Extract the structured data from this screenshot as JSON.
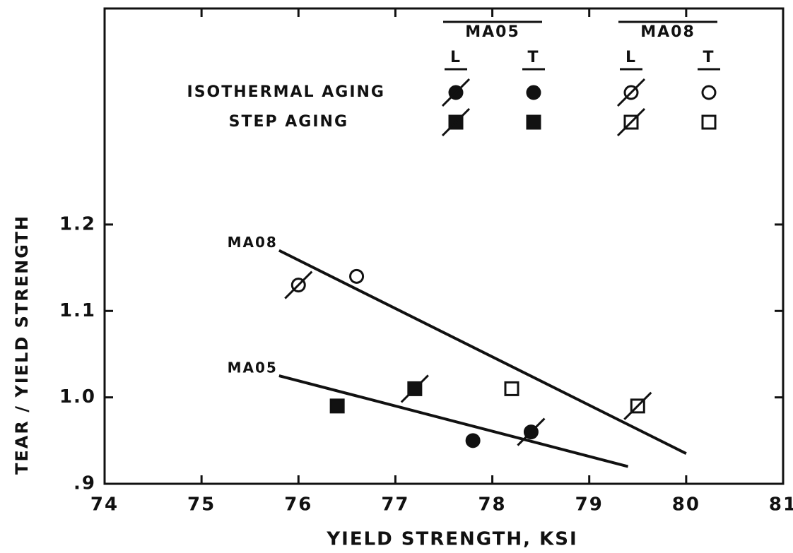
{
  "chart_data": {
    "type": "scatter",
    "xlabel": "YIELD STRENGTH, KSI",
    "ylabel": "TEAR / YIELD STRENGTH",
    "xlim": [
      74,
      81
    ],
    "xticks": [
      74,
      75,
      76,
      77,
      78,
      79,
      80,
      81
    ],
    "ylim": [
      0.9,
      1.45
    ],
    "yticks": [
      {
        "value": 0.9,
        "label": ".9"
      },
      {
        "value": 1.0,
        "label": "1.0"
      },
      1.1,
      1.2
    ],
    "color": "#111111",
    "legend": {
      "groups": [
        "MA05",
        "MA08"
      ],
      "directions": [
        "L",
        "T"
      ],
      "rows": [
        "ISOTHERMAL AGING",
        "STEP AGING"
      ]
    },
    "series": [
      {
        "marker": "circle",
        "filled": true,
        "slash": true,
        "x": [
          78.4
        ],
        "values": [
          0.96
        ]
      },
      {
        "marker": "circle",
        "filled": true,
        "slash": false,
        "x": [
          77.8
        ],
        "values": [
          0.95
        ]
      },
      {
        "marker": "circle",
        "filled": false,
        "slash": true,
        "x": [
          76.0
        ],
        "values": [
          1.13
        ]
      },
      {
        "marker": "circle",
        "filled": false,
        "slash": false,
        "x": [
          76.6
        ],
        "values": [
          1.14
        ]
      },
      {
        "marker": "square",
        "filled": true,
        "slash": true,
        "x": [
          77.2
        ],
        "values": [
          1.01
        ]
      },
      {
        "marker": "square",
        "filled": true,
        "slash": false,
        "x": [
          76.4
        ],
        "values": [
          0.99
        ]
      },
      {
        "marker": "square",
        "filled": false,
        "slash": true,
        "x": [
          79.5
        ],
        "values": [
          0.99
        ]
      },
      {
        "marker": "square",
        "filled": false,
        "slash": false,
        "x": [
          78.2
        ],
        "values": [
          1.01
        ]
      }
    ],
    "lines": [
      {
        "label": "MA08",
        "x": [
          75.8,
          80.0
        ],
        "values": [
          1.17,
          0.935
        ]
      },
      {
        "label": "MA05",
        "x": [
          75.8,
          79.4
        ],
        "values": [
          1.025,
          0.92
        ]
      }
    ]
  }
}
